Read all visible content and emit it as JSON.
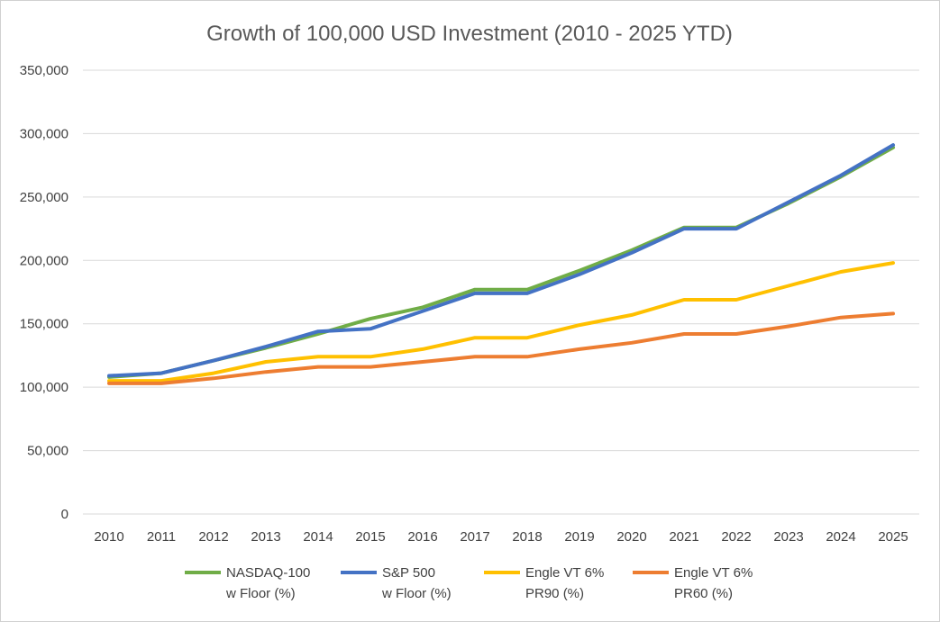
{
  "chart_data": {
    "type": "line",
    "title": "Growth of 100,000 USD Investment (2010 - 2025 YTD)",
    "xlabel": "",
    "ylabel": "",
    "ylim": [
      0,
      350000
    ],
    "yticks": [
      0,
      50000,
      100000,
      150000,
      200000,
      250000,
      300000,
      350000
    ],
    "ytick_labels": [
      "0",
      "50,000",
      "100,000",
      "150,000",
      "200,000",
      "250,000",
      "300,000",
      "350,000"
    ],
    "categories": [
      "2010",
      "2011",
      "2012",
      "2013",
      "2014",
      "2015",
      "2016",
      "2017",
      "2018",
      "2019",
      "2020",
      "2021",
      "2022",
      "2023",
      "2024",
      "2025"
    ],
    "grid": true,
    "legend_position": "bottom",
    "series": [
      {
        "name_line1": "NASDAQ-100",
        "name_line2": "w Floor (%)",
        "color": "#70ad47",
        "values": [
          108000,
          111000,
          121000,
          131000,
          142000,
          154000,
          163000,
          177000,
          177000,
          192000,
          208000,
          226000,
          226000,
          245000,
          266000,
          289000
        ]
      },
      {
        "name_line1": "S&P 500",
        "name_line2": "w Floor (%)",
        "color": "#4472c4",
        "values": [
          109000,
          111000,
          121000,
          132000,
          144000,
          146000,
          160000,
          174000,
          174000,
          189000,
          206000,
          225000,
          225000,
          246000,
          267000,
          291000
        ]
      },
      {
        "name_line1": "Engle VT 6%",
        "name_line2": "PR90 (%)",
        "color": "#ffc000",
        "values": [
          105000,
          105000,
          111000,
          120000,
          124000,
          124000,
          130000,
          139000,
          139000,
          149000,
          157000,
          169000,
          169000,
          180000,
          191000,
          198000
        ]
      },
      {
        "name_line1": "Engle VT 6%",
        "name_line2": "PR60 (%)",
        "color": "#ed7d31",
        "values": [
          103000,
          103000,
          107000,
          112000,
          116000,
          116000,
          120000,
          124000,
          124000,
          130000,
          135000,
          142000,
          142000,
          148000,
          155000,
          158000
        ]
      }
    ]
  }
}
